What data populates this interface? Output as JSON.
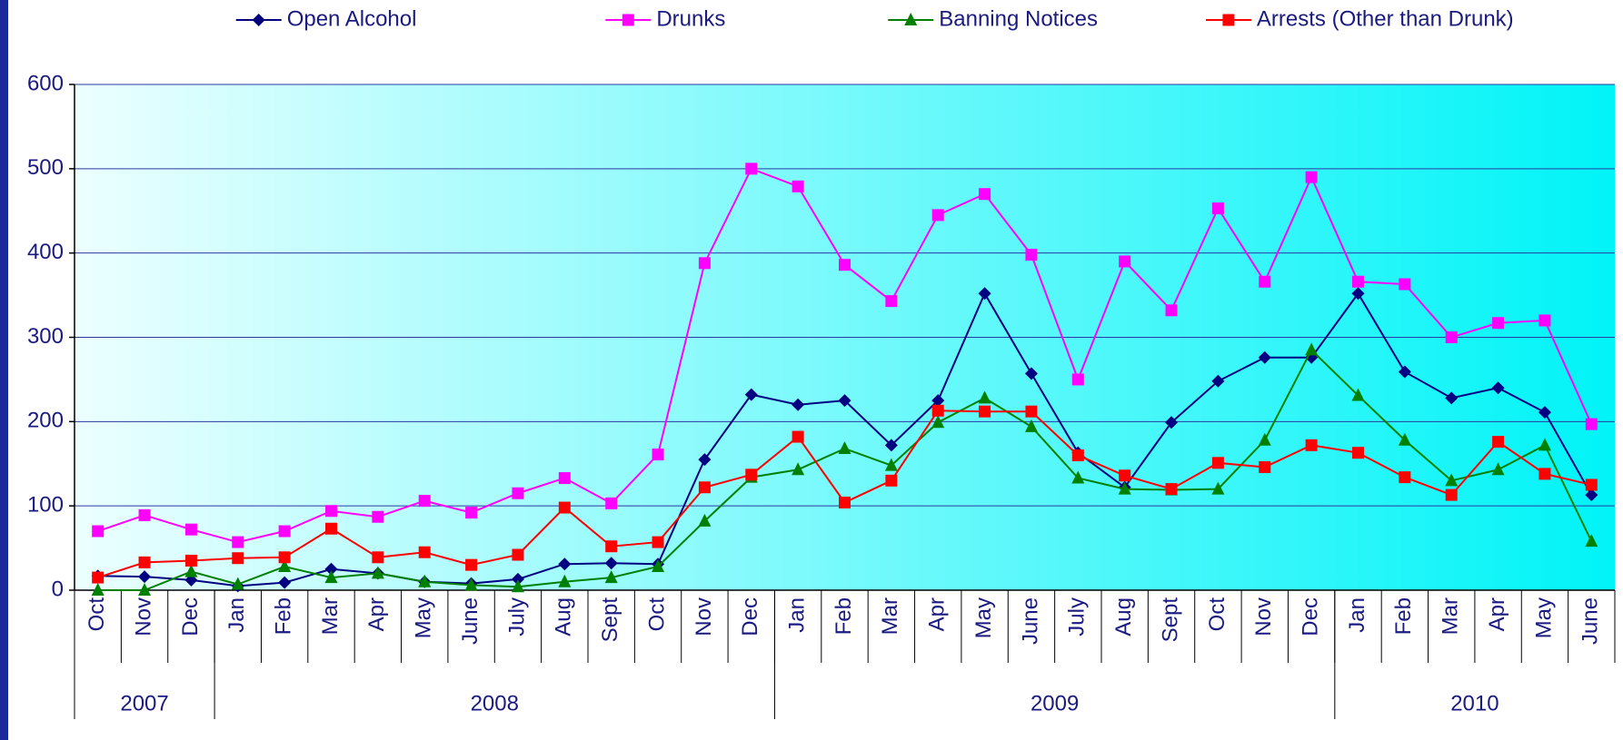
{
  "chart_data": {
    "type": "line",
    "categories": [
      "Oct",
      "Nov",
      "Dec",
      "Jan",
      "Feb",
      "Mar",
      "Apr",
      "May",
      "June",
      "July",
      "Aug",
      "Sept",
      "Oct",
      "Nov",
      "Dec",
      "Jan",
      "Feb",
      "Mar",
      "Apr",
      "May",
      "June",
      "July",
      "Aug",
      "Sept",
      "Oct",
      "Nov",
      "Dec",
      "Jan",
      "Feb",
      "Mar",
      "Apr",
      "May",
      "June"
    ],
    "year_groups": [
      {
        "label": "2007",
        "span": 3
      },
      {
        "label": "2008",
        "span": 12
      },
      {
        "label": "2009",
        "span": 12
      },
      {
        "label": "2010",
        "span": 6
      }
    ],
    "series": [
      {
        "name": "Open Alcohol",
        "color": "#000080",
        "marker": "diamond",
        "values": [
          17,
          16,
          12,
          5,
          9,
          25,
          20,
          10,
          8,
          13,
          31,
          32,
          31,
          155,
          232,
          220,
          225,
          172,
          225,
          352,
          257,
          163,
          122,
          199,
          248,
          276,
          276,
          352,
          259,
          228,
          240,
          211,
          113
        ]
      },
      {
        "name": "Drunks",
        "color": "#ff00ff",
        "marker": "square",
        "values": [
          70,
          89,
          72,
          57,
          70,
          94,
          87,
          106,
          92,
          115,
          133,
          103,
          161,
          388,
          500,
          479,
          386,
          343,
          445,
          470,
          398,
          250,
          390,
          332,
          453,
          366,
          490,
          366,
          363,
          300,
          317,
          320,
          197
        ]
      },
      {
        "name": "Banning Notices",
        "color": "#008000",
        "marker": "triangle",
        "values": [
          0,
          0,
          22,
          7,
          28,
          15,
          20,
          10,
          6,
          4,
          10,
          15,
          28,
          82,
          134,
          143,
          168,
          148,
          199,
          228,
          194,
          133,
          120,
          119,
          120,
          178,
          285,
          231,
          178,
          130,
          143,
          172,
          58
        ]
      },
      {
        "name": "Arrests (Other than Drunk)",
        "color": "#ff0000",
        "marker": "square",
        "values": [
          15,
          33,
          35,
          38,
          39,
          73,
          39,
          45,
          30,
          42,
          98,
          52,
          57,
          122,
          137,
          182,
          104,
          130,
          213,
          212,
          212,
          160,
          136,
          120,
          151,
          146,
          172,
          163,
          134,
          113,
          176,
          138,
          125
        ]
      }
    ],
    "ylim": [
      0,
      600
    ],
    "yticks": [
      0,
      100,
      200,
      300,
      400,
      500,
      600
    ],
    "grid": true,
    "legend": "top"
  }
}
